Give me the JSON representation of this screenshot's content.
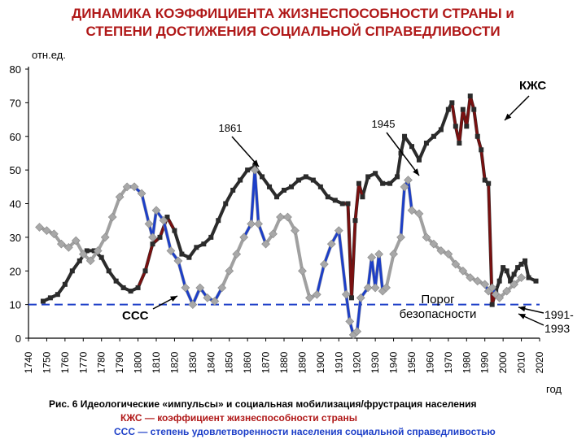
{
  "title_line1": "ДИНАМИКА КОЭФФИЦИЕНТА ЖИЗНЕСПОСОБНОСТИ СТРАНЫ и",
  "title_line2": "СТЕПЕНИ ДОСТИЖЕНИЯ СОЦИАЛЬНОЙ СПРАВЕДЛИВОСТИ",
  "caption": {
    "line1": "Рис. 6 Идеологические «импульсы» и социальная мобилизация/фрустрация населения",
    "line2": "КЖС — коэффициент жизнеспособности страны",
    "line3": "ССС — степень удовлетворенности населения социальной справедливостью"
  },
  "chart_data": {
    "type": "line",
    "ylabel": "отн.ед.",
    "xlabel": "год",
    "xlim": [
      1740,
      2020
    ],
    "ylim": [
      0,
      80
    ],
    "x_ticks": [
      1740,
      1750,
      1760,
      1770,
      1780,
      1790,
      1800,
      1810,
      1820,
      1830,
      1840,
      1850,
      1860,
      1870,
      1880,
      1890,
      1900,
      1910,
      1920,
      1930,
      1940,
      1950,
      1960,
      1970,
      1980,
      1990,
      2000,
      2010,
      2020
    ],
    "y_ticks": [
      0,
      10,
      20,
      30,
      40,
      50,
      60,
      70,
      80
    ],
    "threshold": {
      "value": 10,
      "label_line1": "Порог",
      "label_line2": "безопасности"
    },
    "series": [
      {
        "name": "КЖС",
        "color": "#2b2b2b",
        "accent_color": "#7a1010",
        "x": [
          1748,
          1752,
          1756,
          1760,
          1764,
          1768,
          1772,
          1776,
          1780,
          1784,
          1788,
          1792,
          1796,
          1800,
          1804,
          1808,
          1812,
          1816,
          1820,
          1824,
          1828,
          1832,
          1836,
          1840,
          1844,
          1848,
          1852,
          1856,
          1860,
          1864,
          1868,
          1872,
          1876,
          1880,
          1884,
          1888,
          1892,
          1896,
          1900,
          1904,
          1908,
          1912,
          1915,
          1917,
          1919,
          1921,
          1923,
          1926,
          1930,
          1934,
          1938,
          1942,
          1944,
          1946,
          1950,
          1954,
          1958,
          1962,
          1966,
          1970,
          1972,
          1974,
          1976,
          1978,
          1980,
          1982,
          1984,
          1986,
          1988,
          1990,
          1992,
          1994,
          1996,
          1998,
          2000,
          2002,
          2004,
          2006,
          2008,
          2010,
          2012,
          2014,
          2018
        ],
        "y": [
          11,
          12,
          13,
          16,
          20,
          23,
          26,
          26,
          24,
          20,
          17,
          15,
          14,
          15,
          20,
          28,
          30,
          36,
          32,
          25,
          24,
          27,
          28,
          30,
          35,
          40,
          44,
          47,
          50,
          51,
          48,
          45,
          42,
          44,
          45,
          47,
          48,
          47,
          45,
          42,
          41,
          40,
          40,
          12,
          35,
          46,
          42,
          48,
          49,
          46,
          46,
          48,
          55,
          60,
          57,
          53,
          58,
          60,
          62,
          68,
          70,
          63,
          58,
          68,
          63,
          72,
          68,
          60,
          56,
          47,
          46,
          10,
          14,
          17,
          21,
          20,
          17,
          19,
          21,
          22,
          23,
          18,
          17
        ]
      },
      {
        "name": "ССС",
        "color": "#a0a0a0",
        "accent_color": "#1d3fc8",
        "x": [
          1746,
          1750,
          1754,
          1758,
          1762,
          1766,
          1770,
          1774,
          1778,
          1782,
          1786,
          1790,
          1794,
          1798,
          1802,
          1806,
          1808,
          1810,
          1814,
          1818,
          1822,
          1826,
          1830,
          1834,
          1838,
          1842,
          1846,
          1850,
          1854,
          1858,
          1862,
          1864,
          1866,
          1870,
          1874,
          1878,
          1882,
          1886,
          1890,
          1894,
          1898,
          1902,
          1906,
          1910,
          1914,
          1916,
          1918,
          1920,
          1922,
          1926,
          1928,
          1930,
          1932,
          1934,
          1936,
          1940,
          1944,
          1946,
          1948,
          1950,
          1954,
          1958,
          1962,
          1966,
          1970,
          1974,
          1978,
          1982,
          1986,
          1990,
          1992,
          1994,
          1996,
          1998,
          2002,
          2006,
          2010
        ],
        "y": [
          33,
          32,
          31,
          28,
          27,
          29,
          25,
          23,
          26,
          30,
          36,
          42,
          45,
          45,
          43,
          34,
          30,
          38,
          35,
          26,
          23,
          15,
          10,
          15,
          12,
          11,
          15,
          20,
          25,
          30,
          34,
          50,
          34,
          28,
          31,
          36,
          36,
          32,
          20,
          12,
          13,
          22,
          28,
          32,
          13,
          5,
          1,
          2,
          12,
          15,
          24,
          15,
          25,
          14,
          15,
          25,
          30,
          45,
          47,
          38,
          37,
          30,
          28,
          26,
          25,
          22,
          20,
          18,
          17,
          16,
          14,
          15,
          13,
          12,
          14,
          16,
          18
        ]
      }
    ],
    "annotations": [
      "1861",
      "1945",
      "КЖС",
      "ССС",
      "1991-",
      "1993"
    ]
  }
}
